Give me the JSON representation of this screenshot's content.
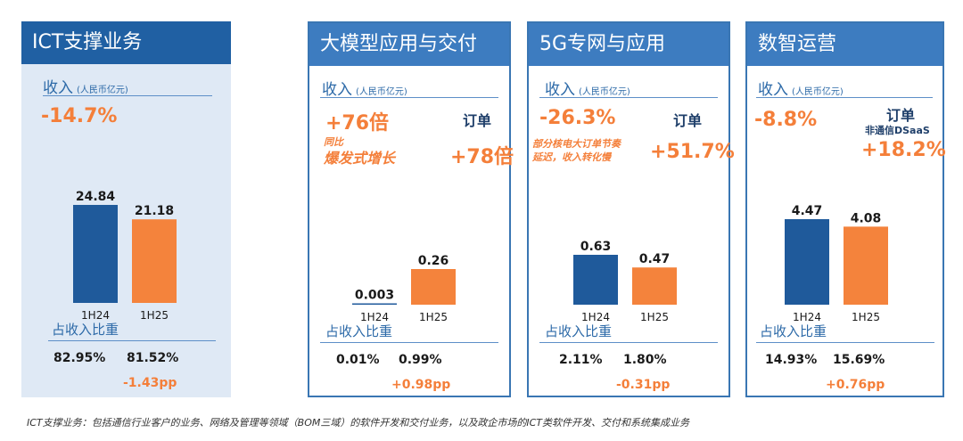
{
  "colors": {
    "h1": "#1f5a9b",
    "h2": "#f4833c",
    "title_dark": "#2060a3",
    "title_light": "#3d7cc0",
    "accent": "#f47f3a"
  },
  "chart_data": [
    {
      "type": "bar",
      "title": "ICT支撑业务",
      "revenue_label": "收入",
      "unit": "(人民币亿元)",
      "growth": "-14.7%",
      "categories": [
        "1H24",
        "1H25"
      ],
      "values": [
        24.84,
        21.18
      ],
      "value_labels": [
        "24.84",
        "21.18"
      ],
      "share_label": "占收入比重",
      "shares": [
        "82.95%",
        "81.52%"
      ],
      "share_change": "-1.43pp"
    },
    {
      "type": "bar",
      "title": "大模型应用与交付",
      "revenue_label": "收入",
      "unit": "(人民币亿元)",
      "growth": "+76倍",
      "note_line1": "同比",
      "note_line2": "爆发式增长",
      "order_label": "订单",
      "order_growth": "+78倍",
      "categories": [
        "1H24",
        "1H25"
      ],
      "values": [
        0.003,
        0.26
      ],
      "value_labels": [
        "0.003",
        "0.26"
      ],
      "share_label": "占收入比重",
      "shares": [
        "0.01%",
        "0.99%"
      ],
      "share_change": "+0.98pp"
    },
    {
      "type": "bar",
      "title": "5G专网与应用",
      "revenue_label": "收入",
      "unit": "(人民币亿元)",
      "growth": "-26.3%",
      "note_line1": "部分核电大订单节奏",
      "note_line2": "延迟，收入转化慢",
      "order_label": "订单",
      "order_growth": "+51.7%",
      "categories": [
        "1H24",
        "1H25"
      ],
      "values": [
        0.63,
        0.47
      ],
      "value_labels": [
        "0.63",
        "0.47"
      ],
      "share_label": "占收入比重",
      "shares": [
        "2.11%",
        "1.80%"
      ],
      "share_change": "-0.31pp"
    },
    {
      "type": "bar",
      "title": "数智运营",
      "revenue_label": "收入",
      "unit": "(人民币亿元)",
      "growth": "-8.8%",
      "order_label": "订单",
      "order_sub": "非通信DSaaS",
      "order_growth": "+18.2%",
      "categories": [
        "1H24",
        "1H25"
      ],
      "values": [
        4.47,
        4.08
      ],
      "value_labels": [
        "4.47",
        "4.08"
      ],
      "share_label": "占收入比重",
      "shares": [
        "14.93%",
        "15.69%"
      ],
      "share_change": "+0.76pp"
    }
  ],
  "footnote": "ICT支撑业务：包括通信行业客户的业务、网络及管理等领域（BOM三域）的软件开发和交付业务，以及政企市场的ICT类软件开发、交付和系统集成业务"
}
